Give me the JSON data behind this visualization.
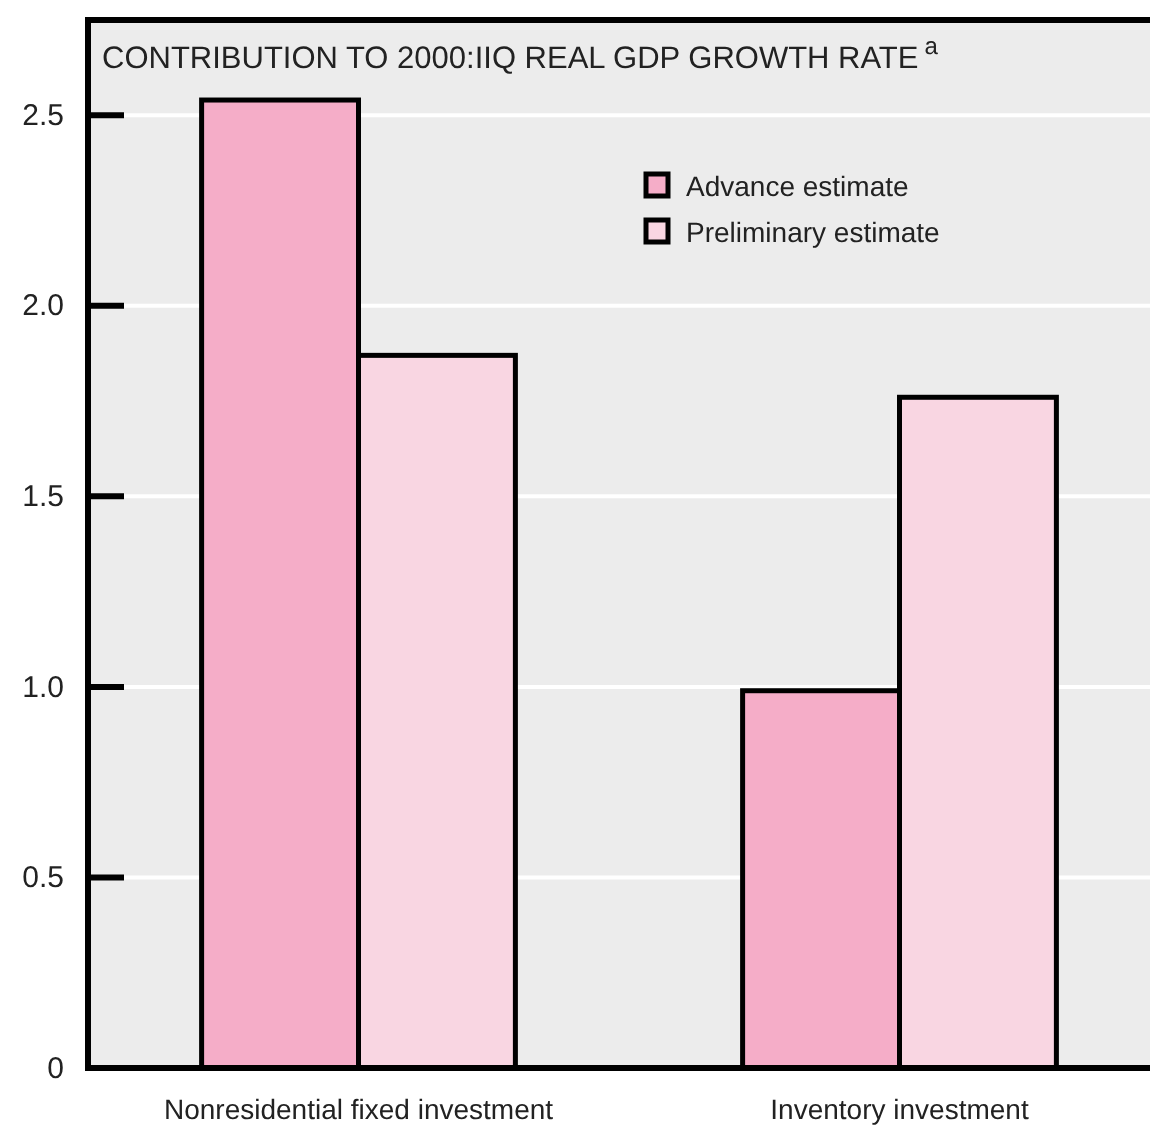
{
  "chart_data": {
    "type": "bar",
    "title": "CONTRIBUTION TO 2000:IIQ REAL GDP GROWTH RATE$^{a}$",
    "categories": [
      "Nonresidential fixed investment",
      "Inventory investment"
    ],
    "series": [
      {
        "name": "Advance estimate",
        "color": "#f5adc8",
        "values": [
          2.54,
          0.99
        ]
      },
      {
        "name": "Preliminary estimate",
        "color": "#f9d6e2",
        "values": [
          1.87,
          1.76
        ]
      }
    ],
    "ylim": [
      0,
      2.75
    ],
    "yticks": [
      {
        "value": 0,
        "label": "0"
      },
      {
        "value": 0.5,
        "label": "0.5"
      },
      {
        "value": 1,
        "label": "1.0"
      },
      {
        "value": 1.5,
        "label": "1.5"
      },
      {
        "value": 2,
        "label": "2.0"
      },
      {
        "value": 2.5,
        "label": "2.5"
      }
    ],
    "grid": "y",
    "legend": "top right"
  }
}
